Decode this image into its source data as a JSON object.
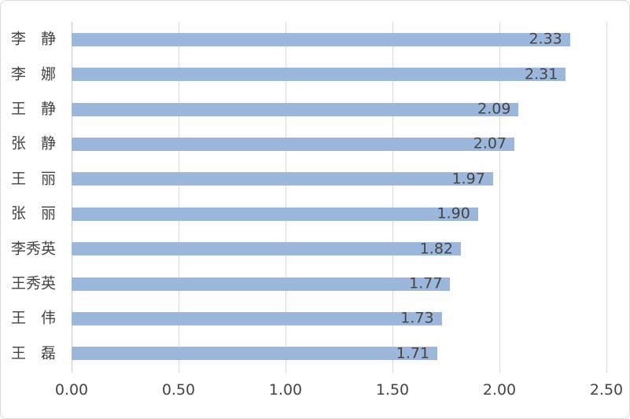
{
  "chart_data": {
    "type": "bar",
    "orientation": "horizontal",
    "title": "",
    "categories": [
      "李　静",
      "李　娜",
      "王　静",
      "张　静",
      "王　丽",
      "张　丽",
      "李秀英",
      "王秀英",
      "王　伟",
      "王　磊"
    ],
    "values": [
      2.33,
      2.31,
      2.09,
      2.07,
      1.97,
      1.9,
      1.82,
      1.77,
      1.73,
      1.71
    ],
    "value_label_format": "2-decimals",
    "x_tick_labels": [
      "0.00",
      "0.50",
      "1.00",
      "1.50",
      "2.00",
      "2.50"
    ],
    "xlim": [
      0,
      2.5
    ],
    "grid": true,
    "legend": false,
    "data_label_position": "inside-end",
    "colors": {
      "bar": "#9BB8DC",
      "gridline": "#D9D9D9",
      "axis_line": "#C9C9C9",
      "text": "#444444",
      "frame_border": "#D9D9D9",
      "background": "#FFFFFF"
    }
  }
}
